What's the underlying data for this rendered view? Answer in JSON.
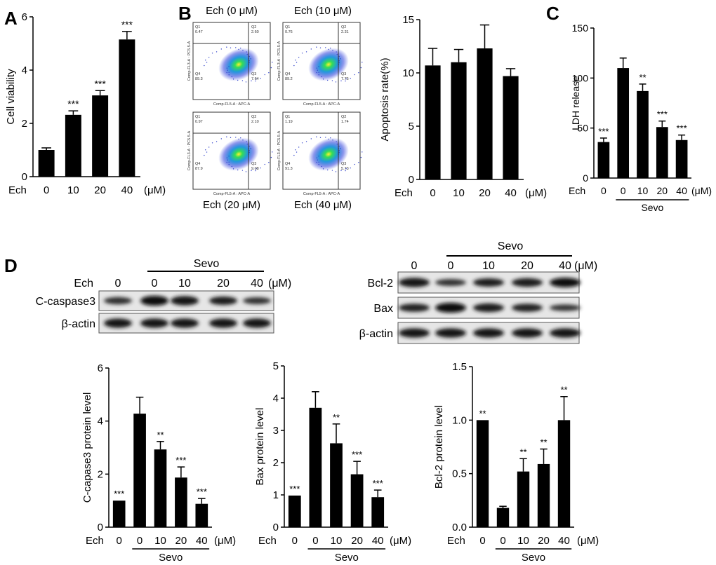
{
  "panel_labels": {
    "a": "A",
    "b": "B",
    "c": "C",
    "d": "D"
  },
  "common": {
    "ech_label": "Ech",
    "unit": "(μM)",
    "sevo_label": "Sevo"
  },
  "flow": {
    "titles": [
      "Ech (0 μM)",
      "Ech (10 μM)",
      "Ech (20 μM)",
      "Ech (40 μM)"
    ],
    "quadrant_names": [
      "Q1",
      "Q2",
      "Q4",
      "Q3"
    ],
    "quadrants": [
      [
        "0.47",
        "2.60",
        "89.3",
        "7.64"
      ],
      [
        "0.76",
        "2.31",
        "89.2",
        "7.75"
      ],
      [
        "0.97",
        "2.10",
        "87.9",
        "9.08"
      ],
      [
        "1.19",
        "1.74",
        "91.3",
        "5.73"
      ]
    ],
    "x_axis_label": "Comp-FL5-A : APC-A",
    "y_axis_label": "Comp-FL3-A : PC5.5-A"
  },
  "blots": {
    "left": {
      "ech_row": [
        "0",
        "0",
        "10",
        "20",
        "40"
      ],
      "rows": [
        "C-caspase3",
        "β-actin"
      ],
      "intensity": {
        "C-caspase3": [
          0.55,
          1.0,
          0.9,
          0.75,
          0.5
        ],
        "β-actin": [
          0.9,
          0.9,
          0.9,
          0.9,
          0.9
        ]
      }
    },
    "right": {
      "ech_row": [
        "0",
        "0",
        "10",
        "20",
        "40"
      ],
      "rows": [
        "Bcl-2",
        "Bax",
        "β-actin"
      ],
      "intensity": {
        "Bcl-2": [
          0.9,
          0.5,
          0.75,
          0.8,
          0.95
        ],
        "Bax": [
          0.7,
          1.0,
          0.8,
          0.7,
          0.45
        ],
        "β-actin": [
          0.9,
          0.9,
          0.9,
          0.9,
          0.9
        ]
      }
    }
  },
  "chart_data": [
    {
      "id": "A",
      "type": "bar",
      "ylabel": "Cell viability",
      "categories": [
        "0",
        "10",
        "20",
        "40"
      ],
      "values": [
        1.0,
        2.32,
        3.05,
        5.15
      ],
      "errors": [
        0.08,
        0.15,
        0.18,
        0.3
      ],
      "sig": [
        "",
        "***",
        "***",
        "***"
      ],
      "ylim": [
        0,
        6
      ],
      "yticks": [
        "0",
        "2",
        "4",
        "6"
      ],
      "sevo": null
    },
    {
      "id": "B",
      "type": "bar",
      "ylabel": "Apoptosis rate(%)",
      "categories": [
        "0",
        "10",
        "20",
        "40"
      ],
      "values": [
        10.7,
        11.0,
        12.3,
        9.7
      ],
      "errors": [
        1.6,
        1.2,
        2.2,
        0.7
      ],
      "sig": [
        "",
        "",
        "",
        ""
      ],
      "ylim": [
        0,
        15
      ],
      "yticks": [
        "0",
        "5",
        "10",
        "15"
      ],
      "sevo": null
    },
    {
      "id": "C",
      "type": "bar",
      "ylabel": "LDH release",
      "categories": [
        "0",
        "0",
        "10",
        "20",
        "40"
      ],
      "values": [
        36,
        110,
        87,
        51,
        38
      ],
      "errors": [
        4,
        10,
        7,
        6,
        5
      ],
      "sig": [
        "***",
        "",
        "**",
        "***",
        "***"
      ],
      "ylim": [
        0,
        150
      ],
      "yticks": [
        "0",
        "50",
        "100",
        "150"
      ],
      "sevo": [
        1,
        4
      ]
    },
    {
      "id": "D1",
      "type": "bar",
      "ylabel": "C-capase3 protein level",
      "categories": [
        "0",
        "0",
        "10",
        "20",
        "40"
      ],
      "values": [
        1.0,
        4.28,
        2.93,
        1.87,
        0.88
      ],
      "errors": [
        0.0,
        0.62,
        0.3,
        0.4,
        0.2
      ],
      "sig": [
        "***",
        "",
        "**",
        "***",
        "***"
      ],
      "ylim": [
        0,
        6
      ],
      "yticks": [
        "0",
        "2",
        "4",
        "6"
      ],
      "sevo": [
        1,
        4
      ]
    },
    {
      "id": "D2",
      "type": "bar",
      "ylabel": "Bax protein level",
      "categories": [
        "0",
        "0",
        "10",
        "20",
        "40"
      ],
      "values": [
        0.98,
        3.7,
        2.6,
        1.64,
        0.93
      ],
      "errors": [
        0.0,
        0.5,
        0.6,
        0.4,
        0.22
      ],
      "sig": [
        "***",
        "",
        "**",
        "***",
        "***"
      ],
      "ylim": [
        0,
        5
      ],
      "yticks": [
        "0",
        "1",
        "2",
        "3",
        "4",
        "5"
      ],
      "sevo": [
        1,
        4
      ]
    },
    {
      "id": "D3",
      "type": "bar",
      "ylabel": "Bcl-2 protein level",
      "categories": [
        "0",
        "0",
        "10",
        "20",
        "40"
      ],
      "values": [
        1.0,
        0.18,
        0.52,
        0.59,
        1.0
      ],
      "errors": [
        0.0,
        0.015,
        0.12,
        0.14,
        0.22
      ],
      "sig": [
        "**",
        "",
        "**",
        "**",
        "**"
      ],
      "ylim": [
        0,
        1.5
      ],
      "yticks": [
        "0.0",
        "0.5",
        "1.0",
        "1.5"
      ],
      "sevo": [
        1,
        4
      ]
    }
  ]
}
